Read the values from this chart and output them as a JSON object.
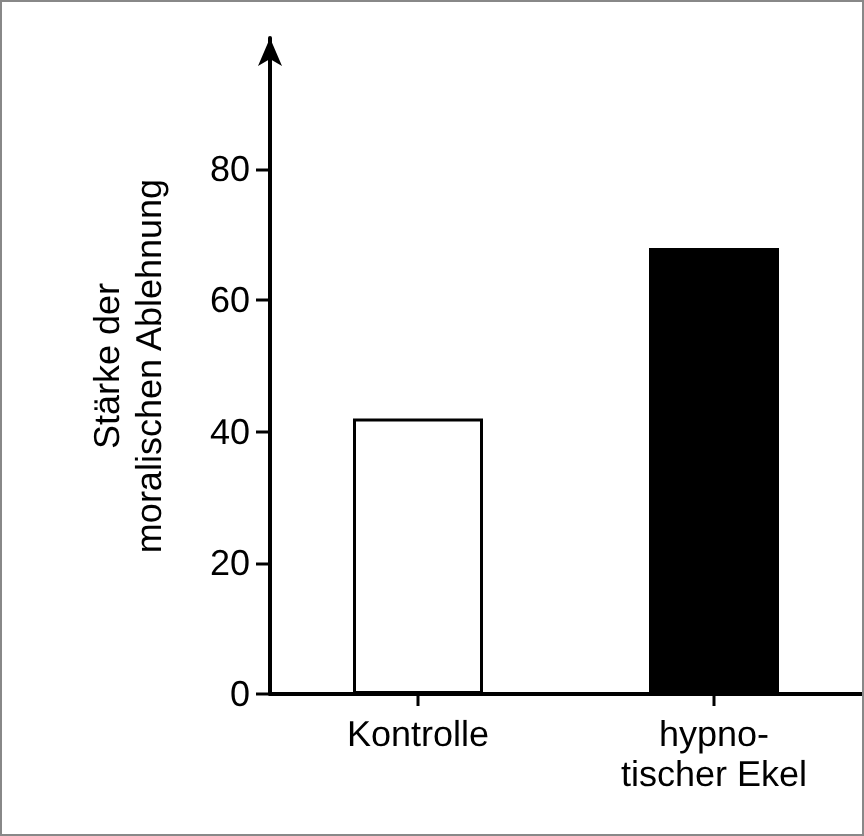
{
  "chart_data": {
    "type": "bar",
    "ylabel": "Stärke der\nmoralischen Ablehnung",
    "categories": [
      "Kontrolle",
      "hypno-\ntischer Ekel"
    ],
    "values": [
      42,
      68
    ],
    "colors": [
      "#ffffff",
      "#000000"
    ],
    "ylim": [
      0,
      100
    ],
    "yticks": [
      0,
      20,
      40,
      60,
      80
    ],
    "grid": false
  }
}
